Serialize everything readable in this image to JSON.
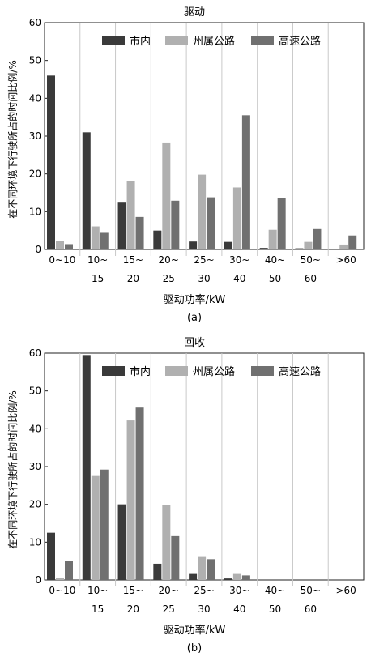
{
  "chart_data": [
    {
      "type": "bar",
      "title": "驱动",
      "caption": "(a)",
      "xlabel": "驱动功率/kW",
      "ylabel": "在不同环境下行驶所占的时间比例/%",
      "ylim": [
        0,
        60
      ],
      "yticks": [
        "0",
        "10",
        "20",
        "30",
        "40",
        "50",
        "60"
      ],
      "categories": [
        [
          "0~10",
          ""
        ],
        [
          "10~",
          "15"
        ],
        [
          "15~",
          "20"
        ],
        [
          "20~",
          "25"
        ],
        [
          "25~",
          "30"
        ],
        [
          "30~",
          "40"
        ],
        [
          "40~",
          "50"
        ],
        [
          "50~",
          "60"
        ],
        [
          ">60",
          ""
        ]
      ],
      "grid": "vertical",
      "legend_position": "top-right",
      "series": [
        {
          "name": "市内",
          "color": "#3a3a3a",
          "values": [
            46,
            31,
            12.6,
            5,
            2.1,
            2,
            0.4,
            0.3,
            0
          ]
        },
        {
          "name": "州属公路",
          "color": "#b0b0b0",
          "values": [
            2.2,
            6.1,
            18.2,
            28.3,
            19.8,
            16.4,
            5.2,
            2,
            1.3
          ]
        },
        {
          "name": "高速公路",
          "color": "#707070",
          "values": [
            1.4,
            4.4,
            8.6,
            12.9,
            13.8,
            35.5,
            13.7,
            5.4,
            3.7
          ]
        }
      ]
    },
    {
      "type": "bar",
      "title": "回收",
      "caption": "(b)",
      "xlabel": "驱动功率/kW",
      "ylabel": "在不同环境下行驶所占的时间比例/%",
      "ylim": [
        0,
        60
      ],
      "yticks": [
        "0",
        "10",
        "20",
        "30",
        "40",
        "50",
        "60"
      ],
      "categories": [
        [
          "0~10",
          ""
        ],
        [
          "10~",
          "15"
        ],
        [
          "15~",
          "20"
        ],
        [
          "20~",
          "25"
        ],
        [
          "25~",
          "30"
        ],
        [
          "30~",
          "40"
        ],
        [
          "40~",
          "50"
        ],
        [
          "50~",
          "60"
        ],
        [
          ">60",
          ""
        ]
      ],
      "grid": "vertical",
      "legend_position": "top-right",
      "series": [
        {
          "name": "市内",
          "color": "#3a3a3a",
          "values": [
            12.5,
            59.5,
            20,
            4.3,
            1.8,
            0.4,
            0,
            0,
            0
          ]
        },
        {
          "name": "州属公路",
          "color": "#b0b0b0",
          "values": [
            0.5,
            27.5,
            42.2,
            19.8,
            6.3,
            1.8,
            0,
            0,
            0
          ]
        },
        {
          "name": "高速公路",
          "color": "#707070",
          "values": [
            5,
            29.2,
            45.6,
            11.6,
            5.5,
            1.2,
            0,
            0,
            0
          ]
        }
      ]
    }
  ]
}
